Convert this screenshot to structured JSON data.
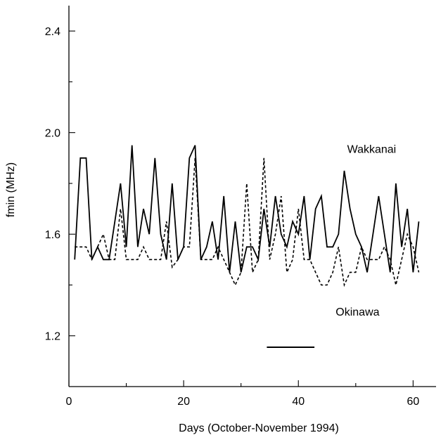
{
  "chart_data": {
    "type": "line",
    "xlabel": "Days (October-November 1994)",
    "ylabel": "fmin (MHz)",
    "xlim": [
      0,
      64
    ],
    "ylim": [
      1.0,
      2.5
    ],
    "x_ticks": [
      0,
      20,
      40,
      60
    ],
    "x_tick_labels": [
      "0",
      "20",
      "40",
      "60"
    ],
    "x_minor_ticks": [
      10,
      30,
      50
    ],
    "y_ticks": [
      1.2,
      1.6,
      2.0,
      2.4
    ],
    "y_tick_labels": [
      "1.2",
      "1.6",
      "2.0",
      "2.4"
    ],
    "y_minor_ticks": [
      1.4,
      1.8,
      2.2
    ],
    "grid": false,
    "annotations": [
      {
        "text": "Wakkanai",
        "x": 48.5,
        "y": 1.92
      },
      {
        "text": "Okinawa",
        "x": 46.5,
        "y": 1.28
      }
    ],
    "scale_bar": {
      "x0": 34.5,
      "x1": 42.8,
      "y": 1.155
    },
    "series": [
      {
        "name": "Wakkanai",
        "style": "solid",
        "x": [
          1,
          2,
          3,
          4,
          5,
          6,
          7,
          8,
          9,
          10,
          11,
          12,
          13,
          14,
          15,
          16,
          17,
          18,
          19,
          20,
          21,
          22,
          23,
          24,
          25,
          26,
          27,
          28,
          29,
          30,
          31,
          32,
          33,
          34,
          35,
          36,
          37,
          38,
          39,
          40,
          41,
          42,
          43,
          44,
          45,
          46,
          47,
          48,
          49,
          50,
          51,
          52,
          53,
          54,
          55,
          56,
          57,
          58,
          59,
          60,
          61
        ],
        "y": [
          1.5,
          1.9,
          1.9,
          1.5,
          1.55,
          1.5,
          1.5,
          1.65,
          1.8,
          1.55,
          1.95,
          1.55,
          1.7,
          1.6,
          1.9,
          1.6,
          1.5,
          1.8,
          1.5,
          1.55,
          1.9,
          1.95,
          1.5,
          1.55,
          1.65,
          1.5,
          1.75,
          1.45,
          1.65,
          1.45,
          1.55,
          1.55,
          1.5,
          1.7,
          1.55,
          1.75,
          1.6,
          1.55,
          1.65,
          1.6,
          1.75,
          1.5,
          1.7,
          1.75,
          1.55,
          1.55,
          1.6,
          1.85,
          1.7,
          1.6,
          1.55,
          1.45,
          1.6,
          1.75,
          1.6,
          1.45,
          1.8,
          1.55,
          1.7,
          1.45,
          1.65
        ]
      },
      {
        "name": "Okinawa",
        "style": "dashed",
        "x": [
          1,
          2,
          3,
          4,
          5,
          6,
          7,
          8,
          9,
          10,
          11,
          12,
          13,
          14,
          15,
          16,
          17,
          18,
          19,
          20,
          21,
          22,
          23,
          24,
          25,
          26,
          27,
          28,
          29,
          30,
          31,
          32,
          33,
          34,
          35,
          36,
          37,
          38,
          39,
          40,
          41,
          42,
          43,
          44,
          45,
          46,
          47,
          48,
          49,
          50,
          51,
          52,
          53,
          54,
          55,
          56,
          57,
          58,
          59,
          60,
          61
        ],
        "y": [
          1.55,
          1.55,
          1.55,
          1.5,
          1.55,
          1.6,
          1.5,
          1.5,
          1.7,
          1.5,
          1.5,
          1.5,
          1.55,
          1.5,
          1.5,
          1.5,
          1.65,
          1.47,
          1.5,
          1.55,
          1.55,
          1.9,
          1.5,
          1.5,
          1.5,
          1.55,
          1.5,
          1.45,
          1.4,
          1.45,
          1.8,
          1.45,
          1.5,
          1.9,
          1.5,
          1.6,
          1.75,
          1.45,
          1.5,
          1.7,
          1.5,
          1.5,
          1.45,
          1.4,
          1.4,
          1.45,
          1.55,
          1.4,
          1.45,
          1.45,
          1.55,
          1.5,
          1.5,
          1.5,
          1.55,
          1.5,
          1.4,
          1.5,
          1.6,
          1.55,
          1.45
        ]
      }
    ]
  }
}
